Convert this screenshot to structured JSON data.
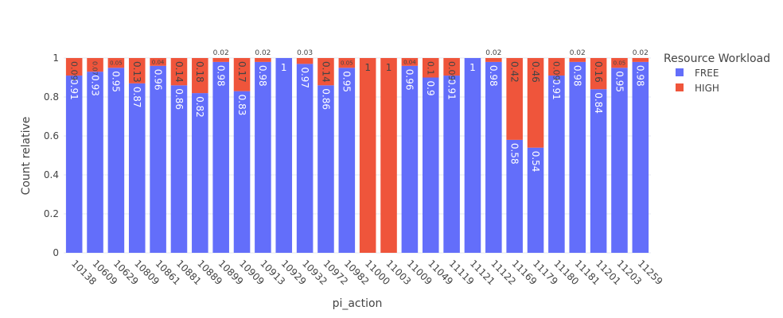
{
  "chart_data": {
    "type": "bar",
    "barmode": "stack",
    "title": "",
    "xlabel": "pi_action",
    "ylabel": "Count relative",
    "ylim": [
      0,
      1
    ],
    "yticks": [
      "0",
      "0.2",
      "0.4",
      "0.6",
      "0.8",
      "1"
    ],
    "grid": true,
    "legend_title": "Resource Workload",
    "legend_position": "top-right",
    "categories": [
      "10138",
      "10609",
      "10629",
      "10809",
      "10861",
      "10881",
      "10889",
      "10899",
      "10909",
      "10913",
      "10929",
      "10932",
      "10972",
      "10982",
      "11000",
      "11003",
      "11009",
      "11049",
      "11119",
      "11121",
      "11122",
      "11169",
      "11179",
      "11180",
      "11181",
      "11201",
      "11203",
      "11259"
    ],
    "series": [
      {
        "name": "FREE",
        "color": "#636efa",
        "values": [
          0.91,
          0.93,
          0.95,
          0.87,
          0.96,
          0.86,
          0.82,
          0.98,
          0.83,
          0.98,
          1,
          0.97,
          0.86,
          0.95,
          0,
          0,
          0.96,
          0.9,
          0.91,
          1,
          0.98,
          0.58,
          0.54,
          0.91,
          0.98,
          0.84,
          0.95,
          0.98
        ],
        "labels": [
          "0.91",
          "0.93",
          "0.95",
          "0.87",
          "0.96",
          "0.86",
          "0.82",
          "0.98",
          "0.83",
          "0.98",
          "1",
          "0.97",
          "0.86",
          "0.95",
          "",
          "",
          "0.96",
          "0.9",
          "0.91",
          "1",
          "0.98",
          "0.58",
          "0.54",
          "0.91",
          "0.98",
          "0.84",
          "0.95",
          "0.98"
        ]
      },
      {
        "name": "HIGH",
        "color": "#ef553b",
        "values": [
          0.09,
          0.07,
          0.05,
          0.13,
          0.04,
          0.14,
          0.18,
          0.02,
          0.17,
          0.02,
          0,
          0.03,
          0.14,
          0.05,
          1,
          1,
          0.04,
          0.1,
          0.09,
          0,
          0.02,
          0.42,
          0.46,
          0.09,
          0.02,
          0.16,
          0.05,
          0.02
        ],
        "labels": [
          "0.09",
          "0.07",
          "0.05",
          "0.13",
          "0.04",
          "0.14",
          "0.18",
          "0.02",
          "0.17",
          "0.02",
          "",
          "0.03",
          "0.14",
          "0.05",
          "1",
          "1",
          "0.04",
          "0.1",
          "0.09",
          "",
          "0.02",
          "0.42",
          "0.46",
          "0.09",
          "0.02",
          "0.16",
          "0.05",
          "0.02"
        ]
      }
    ]
  }
}
